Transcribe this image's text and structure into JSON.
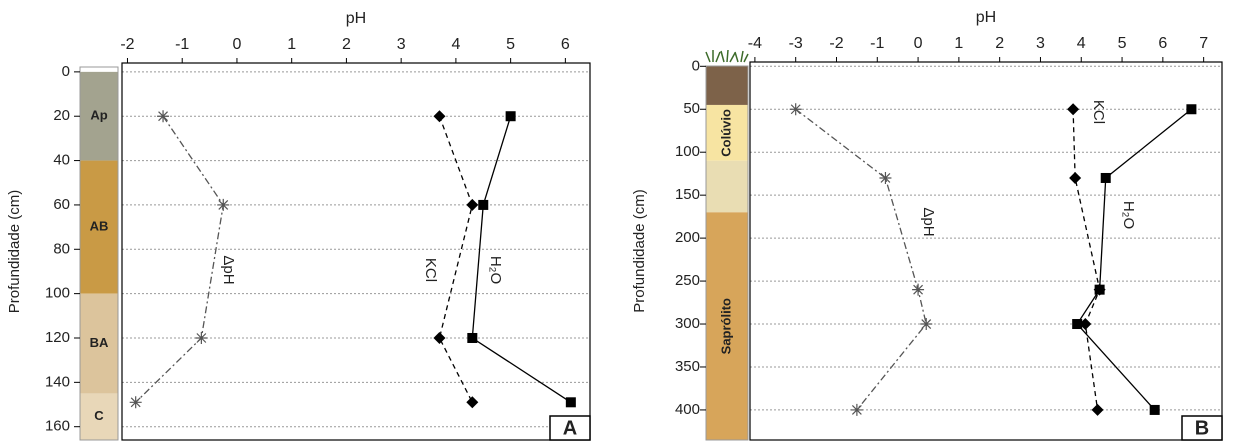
{
  "chart_data": [
    {
      "type": "profile",
      "x_label": "pH",
      "y_label": "Profundidade (cm)",
      "panel": "A",
      "xlim": [
        -2.1,
        6.45
      ],
      "xticks": [
        -2,
        -1,
        0,
        1,
        2,
        3,
        4,
        5,
        6
      ],
      "ylim": [
        -4,
        166
      ],
      "yticks": [
        0,
        20,
        40,
        60,
        80,
        100,
        120,
        140,
        160
      ],
      "y_inverted": true,
      "grid": true,
      "horizons": [
        {
          "label": "Ap",
          "top": 0,
          "bottom": 40,
          "color": "#a3a38f"
        },
        {
          "label": "AB",
          "top": 40,
          "bottom": 100,
          "color": "#c99a45"
        },
        {
          "label": "BA",
          "top": 100,
          "bottom": 145,
          "color": "#dcc49c"
        },
        {
          "label": "C",
          "top": 145,
          "bottom": 166,
          "color": "#e8d7b8"
        }
      ],
      "series": [
        {
          "name": "ΔpH",
          "color": "#555555",
          "line_style": "dashdot",
          "marker": "asterisk",
          "y": [
            20,
            60,
            120,
            149
          ],
          "x": [
            -1.35,
            -0.25,
            -0.65,
            -1.85
          ]
        },
        {
          "name": "KCl",
          "color": "#000000",
          "line_style": "dashed",
          "marker": "diamond",
          "y": [
            20,
            60,
            120,
            149
          ],
          "x": [
            3.7,
            4.3,
            3.7,
            4.3
          ]
        },
        {
          "name": "H₂O",
          "color": "#000000",
          "line_style": "solid",
          "marker": "square",
          "y": [
            20,
            60,
            120,
            149
          ],
          "x": [
            5.0,
            4.5,
            4.3,
            6.1
          ]
        }
      ]
    },
    {
      "type": "profile",
      "x_label": "pH",
      "y_label": "Profundidade (cm)",
      "panel": "B",
      "xlim": [
        -4.12,
        7.45
      ],
      "xticks": [
        -4,
        -3,
        -2,
        -1,
        0,
        1,
        2,
        3,
        4,
        5,
        6,
        7
      ],
      "ylim": [
        -5,
        435
      ],
      "yticks": [
        0,
        50,
        100,
        150,
        200,
        250,
        300,
        350,
        400
      ],
      "y_inverted": true,
      "grid": true,
      "horizons": [
        {
          "label": null,
          "top": 0,
          "bottom": 45,
          "color": "#7d6249"
        },
        {
          "label": "Colúvio",
          "top": 45,
          "bottom": 110,
          "color": "#f7e4a2"
        },
        {
          "label": null,
          "top": 110,
          "bottom": 170,
          "color": "#e9ddb3"
        },
        {
          "label": "Saprólito",
          "top": 170,
          "bottom": 435,
          "color": "#d7a55a"
        }
      ],
      "series": [
        {
          "name": "ΔpH",
          "color": "#555555",
          "line_style": "dashdot",
          "marker": "asterisk",
          "y": [
            50,
            130,
            260,
            300,
            400
          ],
          "x": [
            -3.0,
            -0.8,
            0.0,
            0.2,
            -1.5
          ]
        },
        {
          "name": "KCl",
          "color": "#000000",
          "line_style": "dashed",
          "marker": "diamond",
          "y": [
            50,
            130,
            260,
            300,
            400
          ],
          "x": [
            3.8,
            3.85,
            4.45,
            4.1,
            4.4
          ]
        },
        {
          "name": "H₂O",
          "color": "#000000",
          "line_style": "solid",
          "marker": "square",
          "y": [
            50,
            130,
            260,
            300,
            400
          ],
          "x": [
            6.7,
            4.6,
            4.45,
            3.9,
            5.8
          ]
        }
      ]
    }
  ]
}
